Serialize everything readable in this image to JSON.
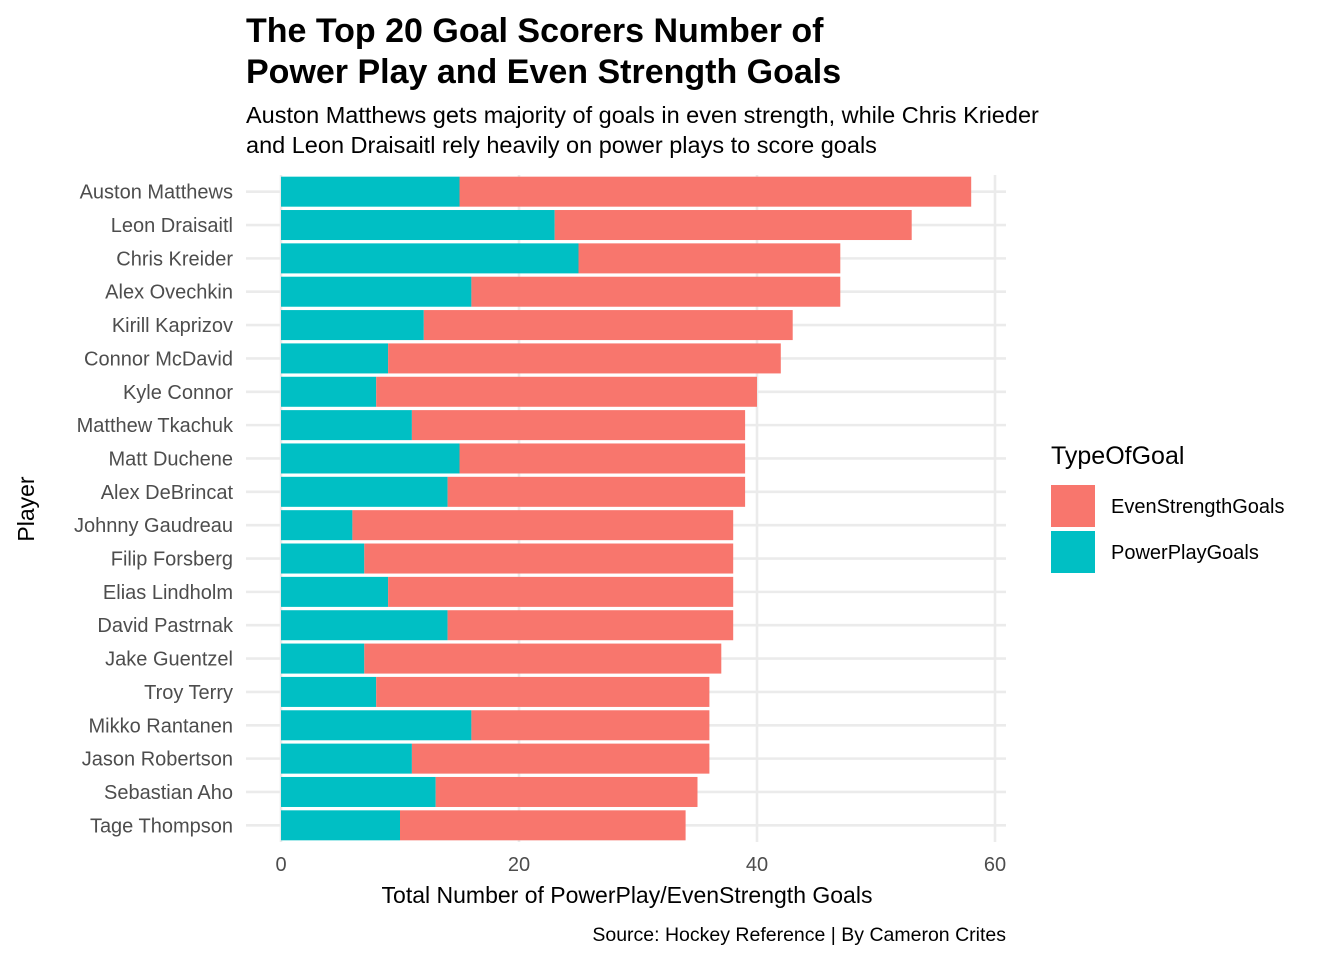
{
  "chart_data": {
    "type": "bar",
    "orientation": "horizontal",
    "stacked": true,
    "title": [
      "The Top 20 Goal Scorers Number of",
      "Power Play and Even Strength Goals"
    ],
    "subtitle": [
      "Auston Matthews gets majority of goals in even strength, while Chris Krieder",
      "and Leon Draisaitl rely heavily on power plays to score goals"
    ],
    "xlabel": "Total Number of PowerPlay/EvenStrength Goals",
    "ylabel": "Player",
    "caption": "Source: Hockey Reference | By Cameron Crites",
    "xlim": [
      0,
      60
    ],
    "xticks": [
      0,
      20,
      40,
      60
    ],
    "grid": true,
    "legend": {
      "title": "TypeOfGoal",
      "position": "right"
    },
    "categories": [
      "Auston Matthews",
      "Leon Draisaitl",
      "Chris Kreider",
      "Alex Ovechkin",
      "Kirill Kaprizov",
      "Connor McDavid",
      "Kyle Connor",
      "Matthew Tkachuk",
      "Matt Duchene",
      "Alex DeBrincat",
      "Johnny Gaudreau",
      "Filip Forsberg",
      "Elias Lindholm",
      "David Pastrnak",
      "Jake Guentzel",
      "Troy Terry",
      "Mikko Rantanen",
      "Jason Robertson",
      "Sebastian Aho",
      "Tage Thompson"
    ],
    "series": [
      {
        "name": "EvenStrengthGoals",
        "color": "#F8766D",
        "values": [
          43,
          30,
          22,
          31,
          31,
          33,
          32,
          28,
          24,
          25,
          32,
          31,
          29,
          24,
          30,
          28,
          20,
          25,
          22,
          24
        ]
      },
      {
        "name": "PowerPlayGoals",
        "color": "#00BFC4",
        "values": [
          15,
          23,
          25,
          16,
          12,
          9,
          8,
          11,
          15,
          14,
          6,
          7,
          9,
          14,
          7,
          8,
          16,
          11,
          13,
          10
        ]
      }
    ]
  }
}
